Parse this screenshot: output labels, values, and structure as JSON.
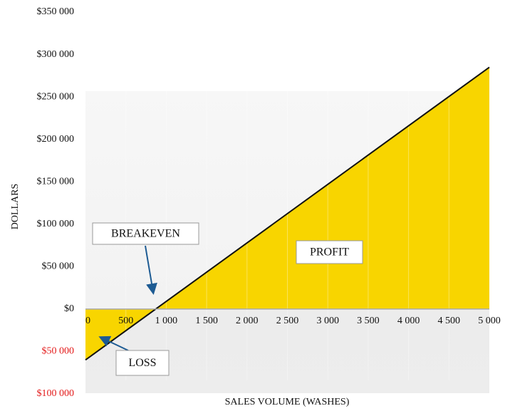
{
  "chart_data": {
    "type": "area",
    "x_label": "SALES VOLUME (WASHES)",
    "y_label": "DOLLARS",
    "x": [
      0,
      5000
    ],
    "values": [
      -60000,
      285000
    ],
    "color": "#f8d500",
    "line_color": "#111111",
    "negative_tick_color": "#e31b1b",
    "xlim": [
      0,
      5000
    ],
    "xticks": [
      0,
      500,
      {
        "value": 1000,
        "label": "1 000"
      },
      {
        "value": 1500,
        "label": "1 500"
      },
      {
        "value": 2000,
        "label": "2 000"
      },
      {
        "value": 2500,
        "label": "2 500"
      },
      {
        "value": 3000,
        "label": "3 000"
      },
      {
        "value": 3500,
        "label": "3 500"
      },
      {
        "value": 4000,
        "label": "4 000"
      },
      {
        "value": 4500,
        "label": "4 500"
      },
      {
        "value": 5000,
        "label": "5 000"
      }
    ],
    "ylim": [
      -100000,
      350000
    ],
    "yticks": [
      {
        "value": -100000,
        "label": "$100 000"
      },
      {
        "value": -50000,
        "label": "$50 000"
      },
      {
        "value": 0,
        "label": "$0"
      },
      {
        "value": 50000,
        "label": "$50 000"
      },
      {
        "value": 100000,
        "label": "$100 000"
      },
      {
        "value": 150000,
        "label": "$150 000"
      },
      {
        "value": 200000,
        "label": "$200 000"
      },
      {
        "value": 250000,
        "label": "$250 000"
      },
      {
        "value": 300000,
        "label": "$300 000"
      },
      {
        "value": 350000,
        "label": "$350 000"
      }
    ],
    "annotations": [
      "BREAKEVEN",
      "PROFIT",
      "LOSS"
    ]
  }
}
